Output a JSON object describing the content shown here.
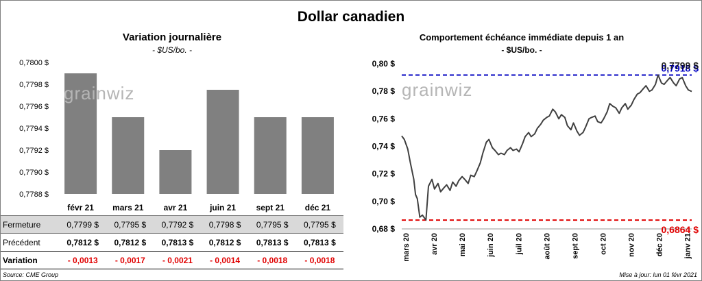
{
  "main_title": "Dollar canadien",
  "watermark": "grainwiz",
  "source": "Source: CME Group",
  "updated": "Mise à jour: lun 01 févr 2021",
  "colors": {
    "bar": "#808080",
    "line": "#404040",
    "high": "#0000c0",
    "low": "#e00000",
    "neg": "#e00000"
  },
  "chart_data": [
    {
      "type": "bar",
      "title": "Variation  journalière",
      "subtitle": "- $US/bo. -",
      "categories": [
        "févr 21",
        "mars 21",
        "avr 21",
        "juin 21",
        "sept 21",
        "déc 21"
      ],
      "values": [
        0.7799,
        0.7795,
        0.7792,
        0.77975,
        0.7795,
        0.7795
      ],
      "ylim": [
        0.7788,
        0.78
      ],
      "yticks": [
        "0,7788 $",
        "0,7790 $",
        "0,7792 $",
        "0,7794 $",
        "0,7796 $",
        "0,7798 $",
        "0,7800 $"
      ],
      "table": {
        "rows": [
          {
            "label": "Fermeture",
            "values": [
              "0,7799  $",
              "0,7795  $",
              "0,7792  $",
              "0,7798  $",
              "0,7795  $",
              "0,7795  $"
            ]
          },
          {
            "label": "Précédent",
            "values": [
              "0,7812  $",
              "0,7812  $",
              "0,7813  $",
              "0,7812  $",
              "0,7813  $",
              "0,7813  $"
            ]
          },
          {
            "label": "Variation",
            "values": [
              "- 0,0013",
              "- 0,0017",
              "- 0,0021",
              "- 0,0014",
              "- 0,0018",
              "- 0,0018"
            ]
          }
        ]
      }
    },
    {
      "type": "line",
      "title": "Comportement échéance immédiate depuis 1 an",
      "subtitle": "- $US/bo. -",
      "ylim": [
        0.68,
        0.8
      ],
      "yticks": [
        "0,68 $",
        "0,70 $",
        "0,72 $",
        "0,74 $",
        "0,76 $",
        "0,78 $",
        "0,80 $"
      ],
      "xticks": [
        "mars 20",
        "avr 20",
        "mai 20",
        "juin 20",
        "juil 20",
        "août 20",
        "sept 20",
        "oct 20",
        "nov 20",
        "déc 20",
        "janv 21"
      ],
      "high": {
        "value": 0.7918,
        "label": "0,7918 $"
      },
      "low": {
        "value": 0.6864,
        "label": "0,6864 $"
      },
      "last_label": "0,7799 $",
      "x": [
        "2020-03-02",
        "2020-03-05",
        "2020-03-09",
        "2020-03-12",
        "2020-03-16",
        "2020-03-18",
        "2020-03-20",
        "2020-03-23",
        "2020-03-26",
        "2020-03-30",
        "2020-04-02",
        "2020-04-06",
        "2020-04-09",
        "2020-04-13",
        "2020-04-16",
        "2020-04-20",
        "2020-04-23",
        "2020-04-27",
        "2020-04-30",
        "2020-05-04",
        "2020-05-07",
        "2020-05-11",
        "2020-05-14",
        "2020-05-18",
        "2020-05-21",
        "2020-05-25",
        "2020-05-28",
        "2020-06-01",
        "2020-06-04",
        "2020-06-08",
        "2020-06-11",
        "2020-06-15",
        "2020-06-18",
        "2020-06-22",
        "2020-06-25",
        "2020-06-29",
        "2020-07-02",
        "2020-07-06",
        "2020-07-09",
        "2020-07-13",
        "2020-07-16",
        "2020-07-20",
        "2020-07-23",
        "2020-07-27",
        "2020-07-30",
        "2020-08-03",
        "2020-08-06",
        "2020-08-10",
        "2020-08-13",
        "2020-08-17",
        "2020-08-20",
        "2020-08-24",
        "2020-08-27",
        "2020-08-31",
        "2020-09-03",
        "2020-09-07",
        "2020-09-10",
        "2020-09-14",
        "2020-09-17",
        "2020-09-21",
        "2020-09-24",
        "2020-09-28",
        "2020-10-01",
        "2020-10-05",
        "2020-10-08",
        "2020-10-12",
        "2020-10-15",
        "2020-10-19",
        "2020-10-22",
        "2020-10-26",
        "2020-10-29",
        "2020-11-02",
        "2020-11-05",
        "2020-11-09",
        "2020-11-12",
        "2020-11-16",
        "2020-11-19",
        "2020-11-23",
        "2020-11-26",
        "2020-11-30",
        "2020-12-03",
        "2020-12-07",
        "2020-12-10",
        "2020-12-14",
        "2020-12-17",
        "2020-12-21",
        "2020-12-24",
        "2020-12-28",
        "2020-12-31",
        "2021-01-04",
        "2021-01-07",
        "2021-01-11",
        "2021-01-14",
        "2021-01-18",
        "2021-01-21",
        "2021-01-25",
        "2021-01-28",
        "2021-02-01"
      ],
      "y": [
        0.7475,
        0.745,
        0.738,
        0.728,
        0.716,
        0.705,
        0.702,
        0.6885,
        0.69,
        0.6864,
        0.711,
        0.716,
        0.709,
        0.713,
        0.707,
        0.71,
        0.712,
        0.708,
        0.714,
        0.711,
        0.715,
        0.718,
        0.716,
        0.713,
        0.719,
        0.718,
        0.722,
        0.728,
        0.735,
        0.743,
        0.745,
        0.739,
        0.737,
        0.734,
        0.735,
        0.734,
        0.737,
        0.739,
        0.737,
        0.738,
        0.736,
        0.742,
        0.747,
        0.75,
        0.747,
        0.749,
        0.753,
        0.756,
        0.759,
        0.761,
        0.762,
        0.767,
        0.765,
        0.76,
        0.763,
        0.761,
        0.755,
        0.752,
        0.757,
        0.751,
        0.748,
        0.75,
        0.754,
        0.76,
        0.761,
        0.762,
        0.758,
        0.757,
        0.76,
        0.765,
        0.771,
        0.769,
        0.768,
        0.764,
        0.768,
        0.771,
        0.767,
        0.77,
        0.774,
        0.778,
        0.779,
        0.782,
        0.784,
        0.78,
        0.781,
        0.785,
        0.7918,
        0.786,
        0.785,
        0.788,
        0.79,
        0.786,
        0.784,
        0.789,
        0.79,
        0.784,
        0.781,
        0.7799
      ]
    }
  ]
}
